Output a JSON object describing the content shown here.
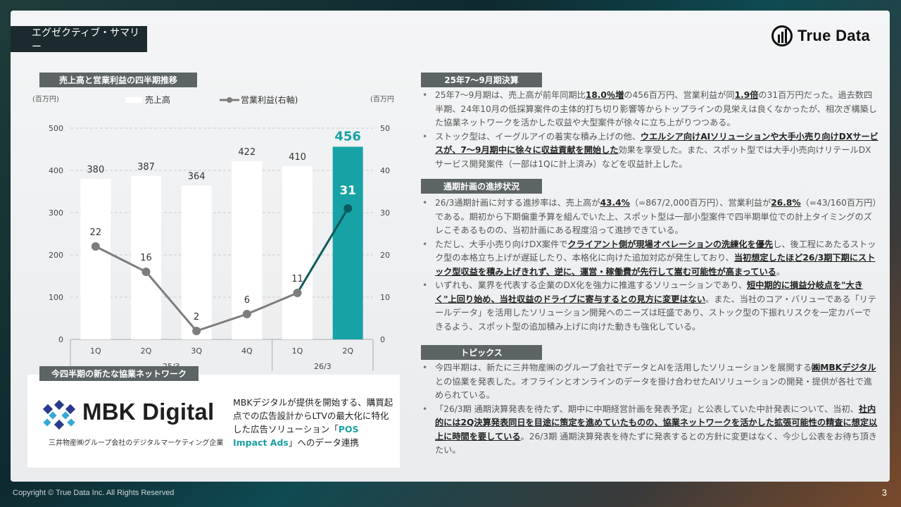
{
  "header": {
    "title": "エグゼクティブ・サマリー",
    "logo_text": "True Data"
  },
  "chart_section": {
    "badge": "売上高と営業利益の四半期推移",
    "left_unit": "(百万円)",
    "right_unit": "(百万円)",
    "legend_bar": "売上高",
    "legend_line": "営業利益(右軸)"
  },
  "chart_data": {
    "type": "bar",
    "categories": [
      "1Q",
      "2Q",
      "3Q",
      "4Q",
      "1Q",
      "2Q"
    ],
    "groups": [
      {
        "label": "25/3",
        "span": [
          0,
          3
        ]
      },
      {
        "label": "26/3",
        "span": [
          4,
          5
        ]
      }
    ],
    "series": [
      {
        "name": "売上高",
        "type": "bar",
        "axis": "left",
        "values": [
          380,
          387,
          364,
          422,
          410,
          456
        ]
      },
      {
        "name": "営業利益(右軸)",
        "type": "line",
        "axis": "right",
        "values": [
          22,
          16,
          2,
          6,
          11,
          31
        ]
      }
    ],
    "ylim_left": [
      0,
      500
    ],
    "yticks_left": [
      0,
      100,
      200,
      300,
      400,
      500
    ],
    "ylim_right": [
      0,
      50
    ],
    "yticks_right": [
      0,
      10,
      20,
      30,
      40,
      50
    ],
    "highlight_index": 5,
    "colors": {
      "bar": "#ffffff",
      "bar_highlight": "#17a3a5",
      "line": "#7d7d7d",
      "line_highlight": "#0d5a5c",
      "highlight_text": "#17a3a5"
    },
    "grid": true
  },
  "network_section": {
    "badge": "今四半期の新たな協業ネットワーク",
    "logo_text": "MBK Digital",
    "logo_sub": "三井物産㈱グループ会社のデジタルマーケティング企業",
    "desc_1": "MBKデジタルが提供を開始する、購買起点での広告設計からLTVの最大化に特化した広告ソリューション「",
    "desc_hl": "POS Impact Ads",
    "desc_2": "」へのデータ連携"
  },
  "s1": {
    "badge": "25年7～9月期決算",
    "b1": [
      "25年7～9月期は、売上高が前年同期比",
      "18.0％増",
      "の456百万円、営業利益が同",
      "1.9倍",
      "の31百万円だった。過去数四半期、24年10月の低採算案件の主体的打ち切り影響等からトップラインの見栄えは良くなかったが、相次ぎ構築した協業ネットワークを活かした収益や大型案件が徐々に立ち上がりつつある。"
    ],
    "b2": [
      "ストック型は、イーグルアイの着実な積み上げの他、",
      "ウエルシア向けAIソリューションや大手小売り向けDXサービスが、7～9月期中に徐々に収益貢献を開始した",
      "効果を享受した。また、スポット型では大手小売向けリテールDXサービス開発案件（一部は1Qに計上済み）などを収益計上した。"
    ]
  },
  "s2": {
    "badge": "通期計画の進捗状況",
    "b1": [
      "26/3通期計画に対する進捗率は、売上高が",
      "43.4%",
      "（=867/2,000百万円）、営業利益が",
      "26.8%",
      "（=43/160百万円）である。期初から下期偏重予算を組んでいた上、スポット型は一部小型案件で四半期単位での計上タイミングのズレこそあるものの、当初計画にある程度沿って進捗できている。"
    ],
    "b2": [
      "ただし、大手小売り向けDX案件で",
      "クライアント側が現場オペレーションの洗練化を優先",
      "し、後工程にあたるストック型の本格立ち上げが遅延したり、本格化に向けた追加対応が発生しており、",
      "当初想定したほど26/3期下期にストック型収益を積み上げきれず、逆に、運営・稼働費が先行して嵩む可能性が高まっている",
      "。"
    ],
    "b3": [
      "いずれも、業界を代表する企業のDX化を強力に推進するソリューションであり、",
      "短中期的に損益分岐点を\"大きく\"上回り始め、当社収益のドライブに寄与するとの見方に変更はない",
      "。また、当社のコア・バリューである「リテールデータ」を活用したソリューション開発へのニーズは旺盛であり、ストック型の下振れリスクを一定カバーできるよう、スポット型の追加積み上げに向けた動きも強化している。"
    ]
  },
  "s3": {
    "badge": "トピックス",
    "b1": [
      "今四半期は、新たに三井物産㈱のグループ会社でデータとAIを活用したソリューションを展開する",
      "㈱MBKデジタル",
      "との協業を発表した。オフラインとオンラインのデータを掛け合わせたAIソリューションの開発・提供が各社で進められている。"
    ],
    "b2": [
      "「26/3期 通期決算発表を待たず、期中に中期経営計画を発表予定」と公表していた中計発表について、当初、",
      "社内的には2Q決算発表同日を目途に策定を進めていたものの、協業ネットワークを活かした拡張可能性の精査に想定以上に時間を要している",
      "。26/3期 通期決算発表を待たずに発表するとの方針に変更はなく、今少し公表をお待ち頂きたい。"
    ]
  },
  "footer": {
    "copyright": "Copyright © True Data Inc. All Rights Reserved",
    "page": "3"
  }
}
